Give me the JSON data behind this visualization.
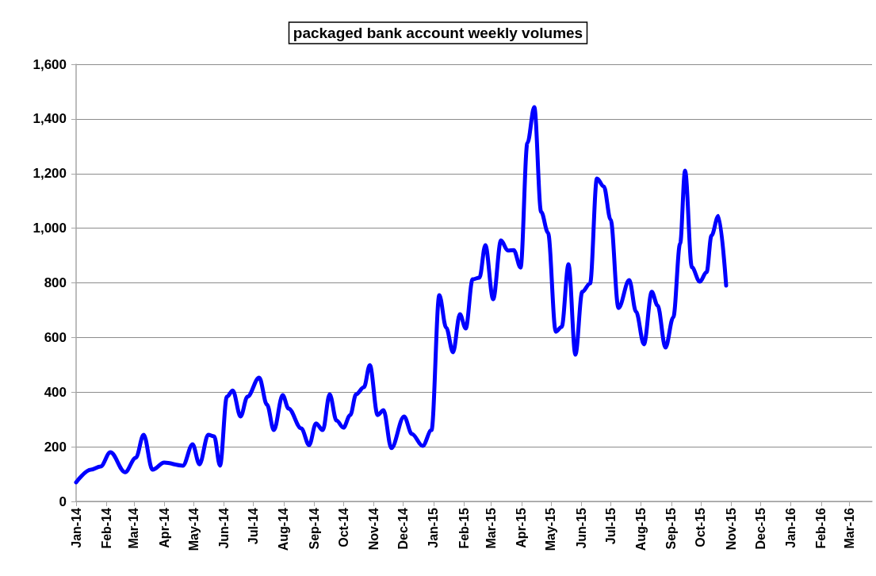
{
  "chart_data": {
    "type": "line",
    "title": "packaged bank account weekly volumes",
    "x": [
      "2014-01-01",
      "2014-01-16",
      "2014-01-26",
      "2014-02-05",
      "2014-02-20",
      "2014-03-03",
      "2014-03-11",
      "2014-03-20",
      "2014-04-01",
      "2014-04-20",
      "2014-04-30",
      "2014-05-07",
      "2014-05-16",
      "2014-05-22",
      "2014-05-28",
      "2014-06-04",
      "2014-06-10",
      "2014-06-18",
      "2014-06-25",
      "2014-07-07",
      "2014-07-15",
      "2014-07-22",
      "2014-07-31",
      "2014-08-06",
      "2014-08-19",
      "2014-08-27",
      "2014-09-03",
      "2014-09-10",
      "2014-09-17",
      "2014-09-24",
      "2014-10-01",
      "2014-10-08",
      "2014-10-14",
      "2014-10-22",
      "2014-10-28",
      "2014-11-05",
      "2014-11-11",
      "2014-11-19",
      "2014-12-02",
      "2014-12-10",
      "2014-12-21",
      "2014-12-30",
      "2015-01-07",
      "2015-01-14",
      "2015-01-21",
      "2015-01-28",
      "2015-02-03",
      "2015-02-10",
      "2015-02-17",
      "2015-02-23",
      "2015-03-03",
      "2015-03-11",
      "2015-03-18",
      "2015-03-24",
      "2015-03-31",
      "2015-04-07",
      "2015-04-14",
      "2015-04-21",
      "2015-04-28",
      "2015-05-06",
      "2015-05-12",
      "2015-05-19",
      "2015-05-26",
      "2015-06-02",
      "2015-06-10",
      "2015-06-17",
      "2015-06-24",
      "2015-07-01",
      "2015-07-09",
      "2015-07-20",
      "2015-07-27",
      "2015-08-04",
      "2015-08-12",
      "2015-08-18",
      "2015-08-26",
      "2015-09-03",
      "2015-09-10",
      "2015-09-15",
      "2015-09-22",
      "2015-09-30",
      "2015-10-07",
      "2015-10-12",
      "2015-10-19",
      "2015-10-27"
    ],
    "series": [
      {
        "color": "#0000ff",
        "values": [
          70,
          116,
          128,
          180,
          107,
          160,
          244,
          116,
          142,
          131,
          209,
          136,
          244,
          238,
          131,
          383,
          406,
          311,
          383,
          453,
          354,
          261,
          389,
          340,
          267,
          206,
          285,
          261,
          392,
          296,
          270,
          316,
          392,
          418,
          499,
          316,
          334,
          195,
          311,
          247,
          203,
          261,
          755,
          636,
          546,
          685,
          633,
          813,
          819,
          938,
          740,
          955,
          918,
          920,
          856,
          1312,
          1443,
          1060,
          984,
          621,
          639,
          868,
          537,
          767,
          798,
          1182,
          1153,
          1031,
          708,
          810,
          694,
          575,
          767,
          717,
          563,
          674,
          944,
          1211,
          857,
          804,
          839,
          973,
          1045,
          790
        ]
      }
    ],
    "xlim": [
      "2014-01-01",
      "2016-03-24"
    ],
    "xticks": [
      {
        "value": "2014-01-01",
        "label": "Jan-14"
      },
      {
        "value": "2014-02-01",
        "label": "Feb-14"
      },
      {
        "value": "2014-03-01",
        "label": "Mar-14"
      },
      {
        "value": "2014-04-01",
        "label": "Apr-14"
      },
      {
        "value": "2014-05-01",
        "label": "May-14"
      },
      {
        "value": "2014-06-01",
        "label": "Jun-14"
      },
      {
        "value": "2014-07-01",
        "label": "Jul-14"
      },
      {
        "value": "2014-08-01",
        "label": "Aug-14"
      },
      {
        "value": "2014-09-01",
        "label": "Sep-14"
      },
      {
        "value": "2014-10-01",
        "label": "Oct-14"
      },
      {
        "value": "2014-11-01",
        "label": "Nov-14"
      },
      {
        "value": "2014-12-01",
        "label": "Dec-14"
      },
      {
        "value": "2015-01-01",
        "label": "Jan-15"
      },
      {
        "value": "2015-02-01",
        "label": "Feb-15"
      },
      {
        "value": "2015-03-01",
        "label": "Mar-15"
      },
      {
        "value": "2015-04-01",
        "label": "Apr-15"
      },
      {
        "value": "2015-05-01",
        "label": "May-15"
      },
      {
        "value": "2015-06-01",
        "label": "Jun-15"
      },
      {
        "value": "2015-07-01",
        "label": "Jul-15"
      },
      {
        "value": "2015-08-01",
        "label": "Aug-15"
      },
      {
        "value": "2015-09-01",
        "label": "Sep-15"
      },
      {
        "value": "2015-10-01",
        "label": "Oct-15"
      },
      {
        "value": "2015-11-01",
        "label": "Nov-15"
      },
      {
        "value": "2015-12-01",
        "label": "Dec-15"
      },
      {
        "value": "2016-01-01",
        "label": "Jan-16"
      },
      {
        "value": "2016-02-01",
        "label": "Feb-16"
      },
      {
        "value": "2016-03-01",
        "label": "Mar-16"
      }
    ],
    "ylim": [
      0,
      1600
    ],
    "yticks": [
      0,
      200,
      400,
      600,
      800,
      {
        "value": 1000,
        "label": "1,000"
      },
      {
        "value": 1200,
        "label": "1,200"
      },
      {
        "value": 1400,
        "label": "1,400"
      },
      {
        "value": 1600,
        "label": "1,600"
      }
    ],
    "grid": "y",
    "marker": "none",
    "line_style": "solid"
  }
}
